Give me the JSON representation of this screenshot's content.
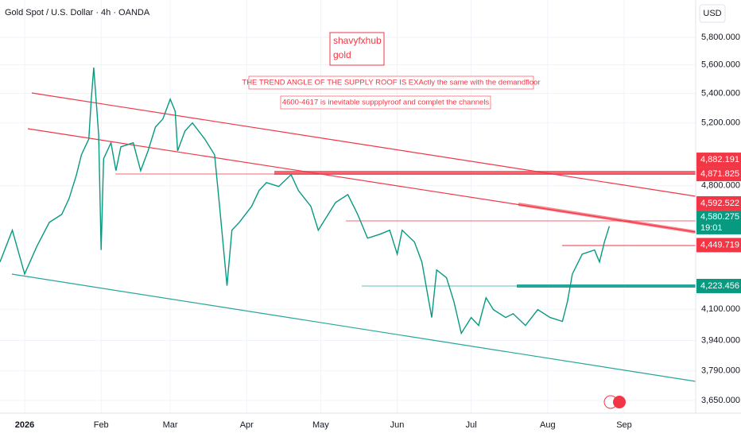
{
  "header": {
    "title": "Gold Spot / U.S. Dollar · 4h · OANDA",
    "currency": "USD"
  },
  "annotations": {
    "author": "shavyfxhub",
    "author_sub": "gold",
    "note1": "THE TREND ANGLE OF THE SUPPLY ROOF IS EXActly the same with the demandfloor",
    "note2": "4600-4617 is inevitable suppplyroof and complet the channels"
  },
  "chart_data": {
    "type": "line",
    "color": "#089981",
    "log_scale": true,
    "x": [
      -10,
      -5,
      0,
      5,
      10,
      15,
      18,
      21,
      23,
      26,
      27,
      28,
      30,
      31,
      32,
      35,
      37,
      39,
      44,
      47,
      50,
      53,
      56,
      59,
      61,
      62,
      65,
      68,
      73,
      77,
      79,
      82,
      84,
      87,
      92,
      95,
      98,
      103,
      108,
      111,
      116,
      119,
      123,
      126,
      131,
      135,
      139,
      144,
      148,
      151,
      153,
      158,
      161,
      165,
      167,
      171,
      174,
      177,
      181,
      184,
      187,
      190,
      195,
      198,
      203,
      208,
      213,
      218,
      220,
      222,
      226,
      231,
      233,
      235,
      237
    ],
    "values": [
      4355,
      4535,
      4289,
      4444,
      4581,
      4627,
      4722,
      4868,
      4993,
      5095,
      5360,
      5581,
      5121,
      4422,
      4968,
      5070,
      4893,
      5044,
      5070,
      4893,
      5018,
      5173,
      5226,
      5360,
      5279,
      5018,
      5147,
      5200,
      5095,
      4993,
      4675,
      4225,
      4535,
      4581,
      4675,
      4770,
      4819,
      4795,
      4868,
      4770,
      4675,
      4535,
      4627,
      4698,
      4746,
      4627,
      4489,
      4512,
      4535,
      4399,
      4535,
      4467,
      4355,
      4057,
      4311,
      4268,
      4140,
      3976,
      4057,
      4016,
      4161,
      4098,
      4057,
      4077,
      4016,
      4098,
      4057,
      4037,
      4140,
      4289,
      4399,
      4422,
      4355,
      4467,
      4558
    ],
    "xlim": [
      -10,
      272
    ],
    "xticks": [
      {
        "value": 0,
        "label": "2026"
      },
      {
        "value": 31,
        "label": "Feb"
      },
      {
        "value": 59,
        "label": "Mar"
      },
      {
        "value": 90,
        "label": "Apr"
      },
      {
        "value": 120,
        "label": "May"
      },
      {
        "value": 151,
        "label": "Jun"
      },
      {
        "value": 181,
        "label": "Jul"
      },
      {
        "value": 212,
        "label": "Aug"
      },
      {
        "value": 243,
        "label": "Sep"
      }
    ],
    "ylim": [
      3591,
      6083
    ],
    "yticks": [
      {
        "value": 5800,
        "label": "5,800.000"
      },
      {
        "value": 5600,
        "label": "5,600.000"
      },
      {
        "value": 5400,
        "label": "5,400.000"
      },
      {
        "value": 5200,
        "label": "5,200.000"
      },
      {
        "value": 4800,
        "label": "4,800.000"
      },
      {
        "value": 4100,
        "label": "4,100.000"
      },
      {
        "value": 3940,
        "label": "3,940.000"
      },
      {
        "value": 3790,
        "label": "3,790.000"
      },
      {
        "value": 3650,
        "label": "3,650.000"
      }
    ],
    "levels": [
      {
        "value": 4882.191,
        "label": "4,882.191",
        "color": "#f23645"
      },
      {
        "value": 4871.825,
        "label": "4,871.825",
        "color": "#f23645"
      },
      {
        "value": 4592.522,
        "label": "4,592.522",
        "color": "#f23645"
      },
      {
        "value": 4580.275,
        "label": "4,580.275",
        "color": "#089981",
        "countdown": "19:01"
      },
      {
        "value": 4449.719,
        "label": "4,449.719",
        "color": "#f23645"
      },
      {
        "value": 4223.456,
        "label": "4,223.456",
        "color": "#089981"
      }
    ]
  }
}
